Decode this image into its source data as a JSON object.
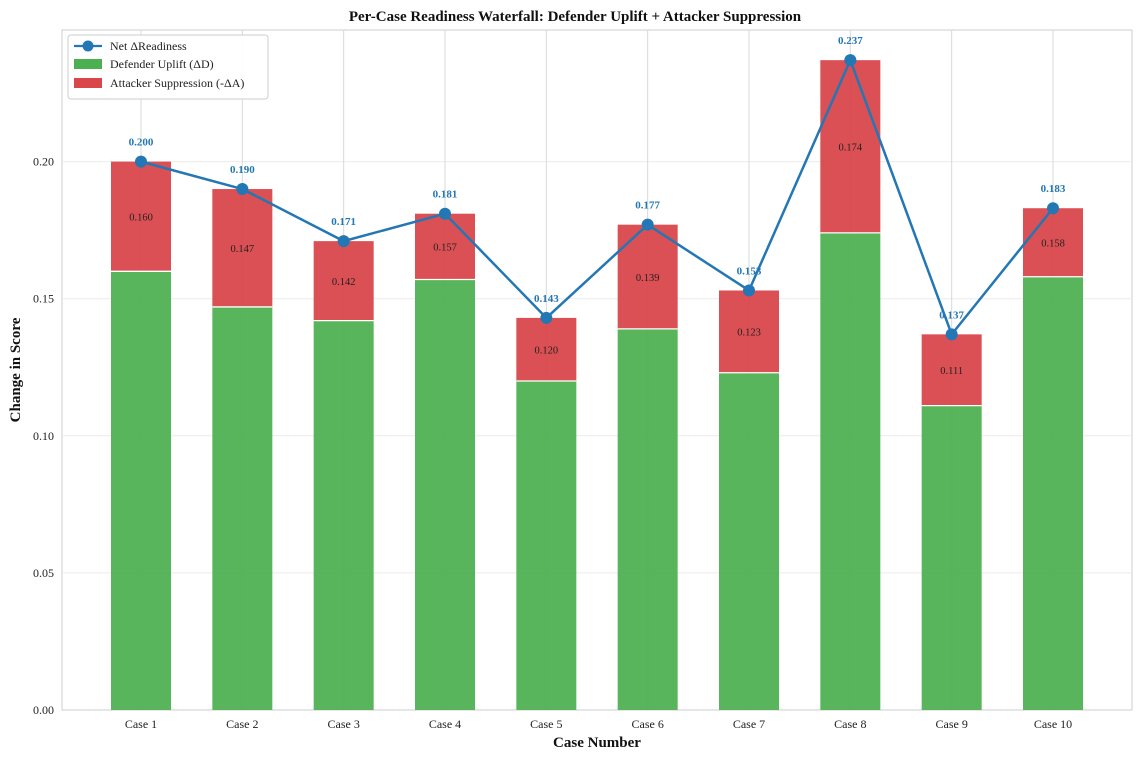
{
  "chart_data": {
    "type": "bar",
    "stacked": true,
    "title": "Per-Case Readiness Waterfall: Defender Uplift + Attacker Suppression",
    "xlabel": "Case Number",
    "ylabel": "Change in Score",
    "ylim": [
      0,
      0.248
    ],
    "yticks": [
      "0.00",
      "0.05",
      "0.10",
      "0.15",
      "0.20"
    ],
    "ytick_values": [
      0.0,
      0.05,
      0.1,
      0.15,
      0.2
    ],
    "grid": true,
    "legend_position": "top-left",
    "categories": [
      "Case 1",
      "Case 2",
      "Case 3",
      "Case 4",
      "Case 5",
      "Case 6",
      "Case 7",
      "Case 8",
      "Case 9",
      "Case 10"
    ],
    "series": [
      {
        "name": "Defender Uplift (ΔD)",
        "kind": "bar",
        "color": "#4caf50",
        "values": [
          0.16,
          0.147,
          0.142,
          0.157,
          0.12,
          0.139,
          0.123,
          0.174,
          0.111,
          0.158
        ],
        "labels": [
          "0.160",
          "0.147",
          "0.142",
          "0.157",
          "0.120",
          "0.139",
          "0.123",
          "0.174",
          "0.111",
          "0.158"
        ]
      },
      {
        "name": "Attacker Suppression (-ΔA)",
        "kind": "bar",
        "color": "#d9474b",
        "values": [
          0.04,
          0.043,
          0.029,
          0.024,
          0.023,
          0.038,
          0.03,
          0.063,
          0.026,
          0.025
        ]
      },
      {
        "name": "Net ΔReadiness",
        "kind": "line",
        "color": "#2377b4",
        "values": [
          0.2,
          0.19,
          0.171,
          0.181,
          0.143,
          0.177,
          0.153,
          0.237,
          0.137,
          0.183
        ],
        "labels": [
          "0.200",
          "0.190",
          "0.171",
          "0.181",
          "0.143",
          "0.177",
          "0.153",
          "0.237",
          "0.137",
          "0.183"
        ]
      }
    ]
  }
}
